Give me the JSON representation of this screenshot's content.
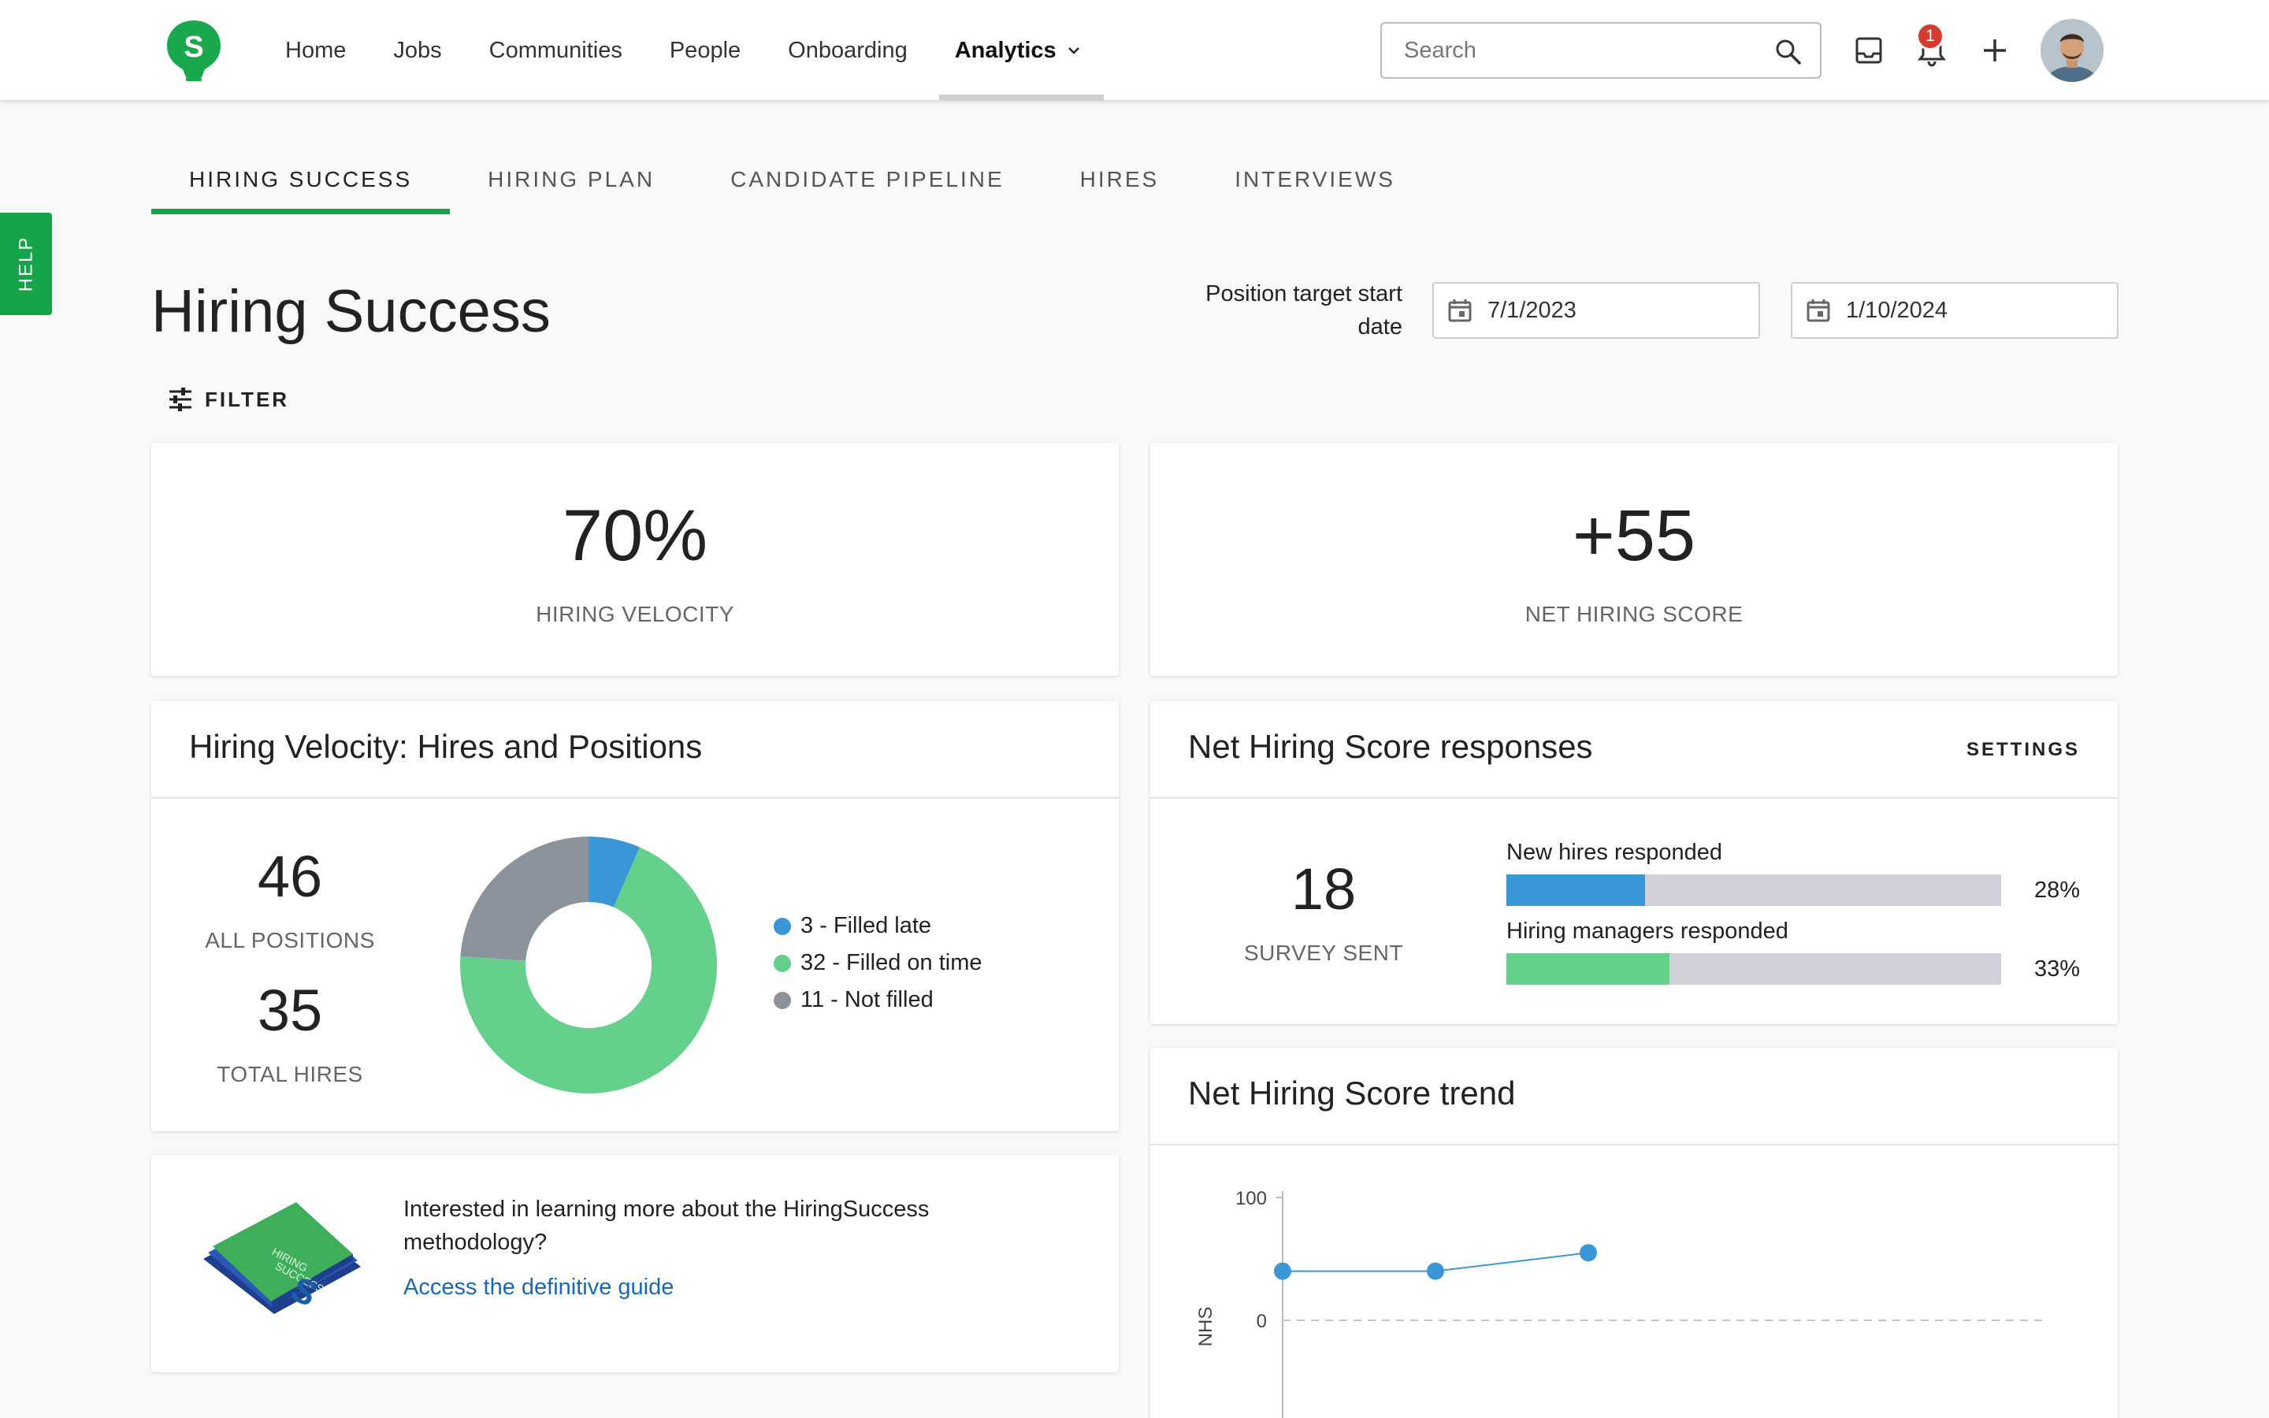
{
  "nav": {
    "items": [
      {
        "label": "Home"
      },
      {
        "label": "Jobs"
      },
      {
        "label": "Communities"
      },
      {
        "label": "People"
      },
      {
        "label": "Onboarding"
      },
      {
        "label": "Analytics",
        "active": true
      }
    ],
    "search_placeholder": "Search",
    "notification_count": "1"
  },
  "help_label": "HELP",
  "subtabs": [
    {
      "label": "HIRING SUCCESS",
      "active": true
    },
    {
      "label": "HIRING PLAN"
    },
    {
      "label": "CANDIDATE PIPELINE"
    },
    {
      "label": "HIRES"
    },
    {
      "label": "INTERVIEWS"
    }
  ],
  "page": {
    "title": "Hiring Success",
    "date_label": "Position target start date",
    "start_date": "7/1/2023",
    "end_date": "1/10/2024",
    "filter_label": "FILTER"
  },
  "kpis": {
    "velocity_value": "70%",
    "velocity_label": "HIRING VELOCITY",
    "nhs_value": "+55",
    "nhs_label": "NET HIRING SCORE"
  },
  "velocity_card": {
    "title": "Hiring Velocity: Hires and Positions",
    "all_positions_value": "46",
    "all_positions_label": "ALL POSITIONS",
    "total_hires_value": "35",
    "total_hires_label": "TOTAL HIRES",
    "legend": [
      {
        "label": "3 - Filled late",
        "color": "#3a97d7"
      },
      {
        "label": "32 - Filled on time",
        "color": "#65d08c"
      },
      {
        "label": "11 - Not filled",
        "color": "#8a939b"
      }
    ]
  },
  "responses_card": {
    "title": "Net Hiring Score responses",
    "settings_label": "SETTINGS",
    "survey_value": "18",
    "survey_label": "SURVEY SENT",
    "bars": [
      {
        "label": "New hires responded",
        "pct_text": "28%",
        "fraction": 0.28,
        "color": "#3a97d7"
      },
      {
        "label": "Hiring managers responded",
        "pct_text": "33%",
        "fraction": 0.33,
        "color": "#65d08c"
      }
    ]
  },
  "trend_card": {
    "title": "Net Hiring Score trend"
  },
  "guide_card": {
    "text": "Interested in learning more about the HiringSuccess methodology?",
    "link": "Access the definitive guide"
  },
  "chart_data": [
    {
      "type": "pie",
      "title": "",
      "categories": [
        "Filled late",
        "Filled on time",
        "Not filled"
      ],
      "values": [
        3,
        32,
        11
      ],
      "colors": [
        "#3a97d7",
        "#65d08c",
        "#8a939b"
      ],
      "donut": true,
      "legend": "right"
    },
    {
      "type": "line",
      "title": "",
      "ylabel": "NHS",
      "yticks": [
        "100",
        "0"
      ],
      "ylim": [
        -100,
        100
      ],
      "series": [
        {
          "values": [
            40,
            40,
            55
          ],
          "color": "#3a97d7"
        }
      ],
      "reference_line_y": 0,
      "grid": false
    }
  ]
}
